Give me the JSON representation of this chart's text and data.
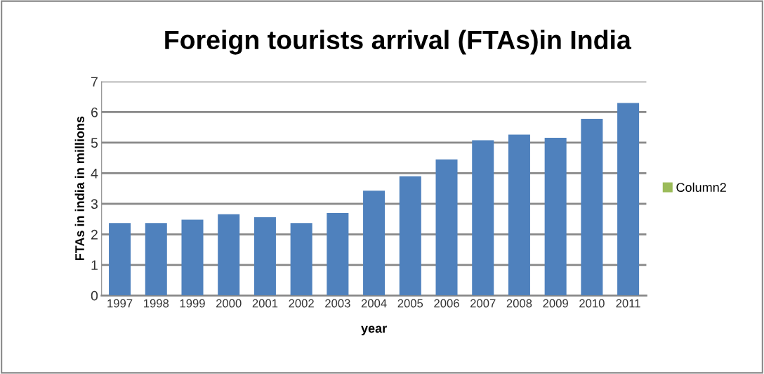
{
  "chart_data": {
    "type": "bar",
    "title": "Foreign tourists arrival (FTAs)in India",
    "xlabel": "year",
    "ylabel": "FTAs in india in millions",
    "categories": [
      "1997",
      "1998",
      "1999",
      "2000",
      "2001",
      "2002",
      "2003",
      "2004",
      "2005",
      "2006",
      "2007",
      "2008",
      "2009",
      "2010",
      "2011"
    ],
    "series": [
      {
        "color": "#4f81bd",
        "values": [
          2.37,
          2.37,
          2.48,
          2.66,
          2.56,
          2.37,
          2.7,
          3.43,
          3.9,
          4.45,
          5.08,
          5.26,
          5.16,
          5.78,
          6.3
        ]
      },
      {
        "name": "Column2",
        "color": "#9bbb59",
        "values": [
          null,
          null,
          null,
          null,
          null,
          null,
          null,
          null,
          null,
          null,
          null,
          null,
          null,
          null,
          null
        ]
      }
    ],
    "ylim": [
      0,
      7
    ],
    "yticks": [
      0,
      1,
      2,
      3,
      4,
      5,
      6,
      7
    ],
    "grid": "y",
    "legend": "right"
  }
}
